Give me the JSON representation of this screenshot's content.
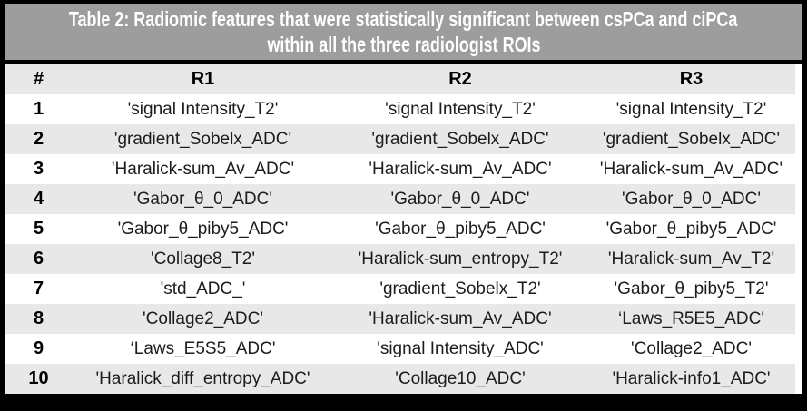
{
  "table": {
    "title_line1": "Table 2: Radiomic features that were statistically significant between csPCa and ciPCa",
    "title_line2": "within all the three radiologist ROIs",
    "columns": [
      "#",
      "R1",
      "R2",
      "R3"
    ],
    "rows": [
      {
        "num": "1",
        "r1": "'signal Intensity_T2'",
        "r2": "'signal Intensity_T2'",
        "r3": "'signal Intensity_T2'"
      },
      {
        "num": "2",
        "r1": "'gradient_Sobelx_ADC'",
        "r2": "'gradient_Sobelx_ADC'",
        "r3": "'gradient_Sobelx_ADC'"
      },
      {
        "num": "3",
        "r1": "'Haralick-sum_Av_ADC'",
        "r2": "'Haralick-sum_Av_ADC'",
        "r3": "'Haralick-sum_Av_ADC'"
      },
      {
        "num": "4",
        "r1": "'Gabor_θ_0_ADC'",
        "r2": "'Gabor_θ_0_ADC'",
        "r3": "'Gabor_θ_0_ADC'"
      },
      {
        "num": "5",
        "r1": "'Gabor_θ_piby5_ADC'",
        "r2": "'Gabor_θ_piby5_ADC'",
        "r3": "'Gabor_θ_piby5_ADC'"
      },
      {
        "num": "6",
        "r1": "'Collage8_T2'",
        "r2": "'Haralick-sum_entropy_T2'",
        "r3": "'Haralick-sum_Av_T2'"
      },
      {
        "num": "7",
        "r1": "'std_ADC_'",
        "r2": "'gradient_Sobelx_T2'",
        "r3": "'Gabor_θ_piby5_T2'"
      },
      {
        "num": "8",
        "r1": "'Collage2_ADC'",
        "r2": "'Haralick-sum_Av_ADC'",
        "r3": "‘Laws_R5E5_ADC'"
      },
      {
        "num": "9",
        "r1": "‘Laws_E5S5_ADC'",
        "r2": "'signal Intensity_ADC'",
        "r3": "'Collage2_ADC'"
      },
      {
        "num": "10",
        "r1": "'Haralick_diff_entropy_ADC'",
        "r2": "'Collage10_ADC'",
        "r3": "'Haralick-info1_ADC'"
      }
    ],
    "colors": {
      "frame": "#000000",
      "title_bg": "#9d9d9d",
      "title_text": "#ffffff",
      "stripe_bg": "#e8e8e8",
      "body_text": "#1c1c1c"
    }
  }
}
